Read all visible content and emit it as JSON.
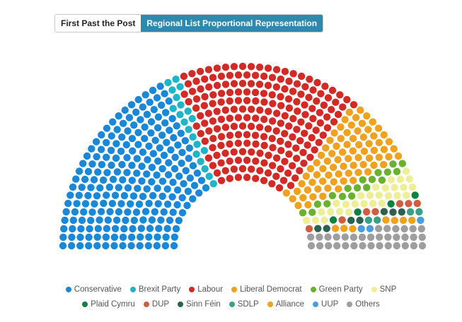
{
  "toggle": {
    "option_fptp": "First Past the Post",
    "option_list_pr": "Regional List Proportional Representation",
    "selected": "Regional List Proportional Representation"
  },
  "chart_data": {
    "type": "parliament",
    "total_seats": 650,
    "series": [
      {
        "name": "Conservative",
        "seats": 229,
        "color": "#1a88d9"
      },
      {
        "name": "Brexit Party",
        "seats": 20,
        "color": "#1fb5c9"
      },
      {
        "name": "Labour",
        "seats": 212,
        "color": "#d42a25"
      },
      {
        "name": "Liberal Democrat",
        "seats": 77,
        "color": "#f0a21e"
      },
      {
        "name": "Green Party",
        "seats": 18,
        "color": "#6ab12f"
      },
      {
        "name": "SNP",
        "seats": 28,
        "color": "#eeee96"
      },
      {
        "name": "Plaid Cymru",
        "seats": 4,
        "color": "#0d8241"
      },
      {
        "name": "DUP",
        "seats": 7,
        "color": "#d05d40"
      },
      {
        "name": "Sinn Féin",
        "seats": 7,
        "color": "#2c6150"
      },
      {
        "name": "SDLP",
        "seats": 4,
        "color": "#3aa085"
      },
      {
        "name": "Alliance",
        "seats": 7,
        "color": "#f0a21e"
      },
      {
        "name": "UUP",
        "seats": 3,
        "color": "#4b9ce0"
      },
      {
        "name": "Others",
        "seats": 34,
        "color": "#9e9e9e"
      }
    ]
  },
  "legend": {
    "row1": [
      {
        "label": "Conservative",
        "color": "#1a88d9"
      },
      {
        "label": "Brexit Party",
        "color": "#1fb5c9"
      },
      {
        "label": "Labour",
        "color": "#d42a25"
      },
      {
        "label": "Liberal Democrat",
        "color": "#f0a21e"
      },
      {
        "label": "Green Party",
        "color": "#6ab12f"
      },
      {
        "label": "SNP",
        "color": "#eeee96"
      }
    ],
    "row2": [
      {
        "label": "Plaid Cymru",
        "color": "#0d8241"
      },
      {
        "label": "DUP",
        "color": "#d05d40"
      },
      {
        "label": "Sinn Féin",
        "color": "#2c6150"
      },
      {
        "label": "SDLP",
        "color": "#3aa085"
      },
      {
        "label": "Alliance",
        "color": "#f0a21e"
      },
      {
        "label": "UUP",
        "color": "#4b9ce0"
      },
      {
        "label": "Others",
        "color": "#9e9e9e"
      }
    ]
  }
}
